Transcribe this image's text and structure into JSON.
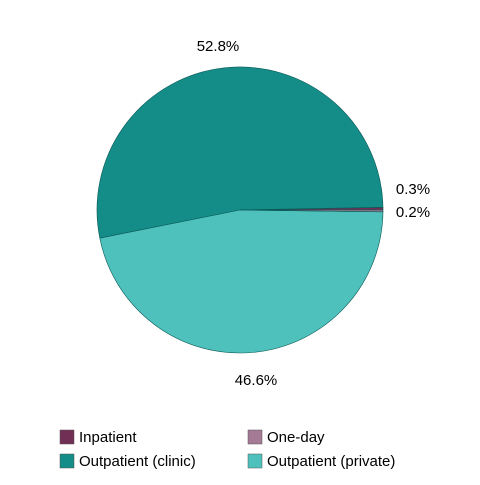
{
  "chart_data": {
    "type": "pie",
    "categories": [
      "Inpatient",
      "One-day",
      "Outpatient (clinic)",
      "Outpatient (private)"
    ],
    "values": [
      0.3,
      0.2,
      52.8,
      46.6
    ],
    "value_labels": [
      "0.3%",
      "0.2%",
      "52.8%",
      "46.6%"
    ],
    "colors": [
      "#722f55",
      "#a57a95",
      "#148c87",
      "#4fc1bd"
    ],
    "legend": "bottom"
  }
}
